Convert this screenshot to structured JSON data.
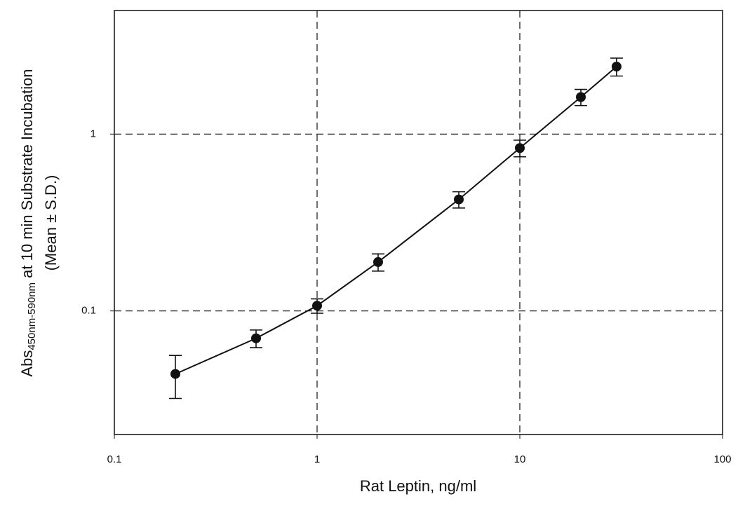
{
  "chart_data": {
    "type": "scatter",
    "x_label": "Rat Leptin, ng/ml",
    "y_label": {
      "main": "Abs",
      "sub": "450nm-590nm",
      "rest": " at 10 min Substrate Incubation",
      "line2": "(Mean ± S.D.)"
    },
    "x": [
      0.2,
      0.5,
      1,
      2,
      5,
      10,
      20,
      30
    ],
    "values": [
      0.044,
      0.07,
      0.107,
      0.189,
      0.427,
      0.834,
      1.62,
      2.41
    ],
    "errors": [
      0.012,
      0.008,
      0.01,
      0.021,
      0.045,
      0.09,
      0.17,
      0.28
    ],
    "color": "#111111",
    "xlim": [
      0.1,
      100
    ],
    "ylim": [
      0.02,
      5
    ],
    "xticks": [
      0.1,
      1,
      10,
      100
    ],
    "yticks": [
      0.1,
      1
    ],
    "xscale": "log",
    "yscale": "log",
    "grid": true
  }
}
